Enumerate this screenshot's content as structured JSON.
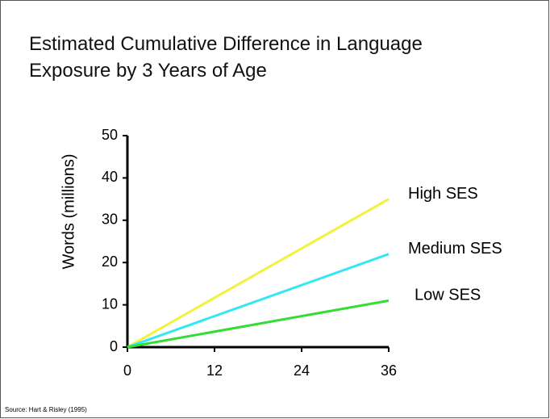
{
  "chart_data": {
    "type": "line",
    "title": "Estimated Cumulative Difference in Language Exposure by 3 Years of Age",
    "y_label": "Words (millions)",
    "source": "Source: Hart & Risley (1995)",
    "x": [
      0,
      36
    ],
    "xlim": [
      0,
      36
    ],
    "xticks": [
      0,
      12,
      24,
      36
    ],
    "ylim": [
      0,
      50
    ],
    "yticks": [
      0,
      10,
      20,
      30,
      40,
      50
    ],
    "series": [
      {
        "name": "High SES",
        "color": "#f2f23c",
        "values": [
          0,
          35
        ]
      },
      {
        "name": "Medium SES",
        "color": "#33e8f2",
        "values": [
          0,
          22
        ]
      },
      {
        "name": "Low SES",
        "color": "#33dd33",
        "values": [
          0,
          11
        ]
      }
    ]
  }
}
